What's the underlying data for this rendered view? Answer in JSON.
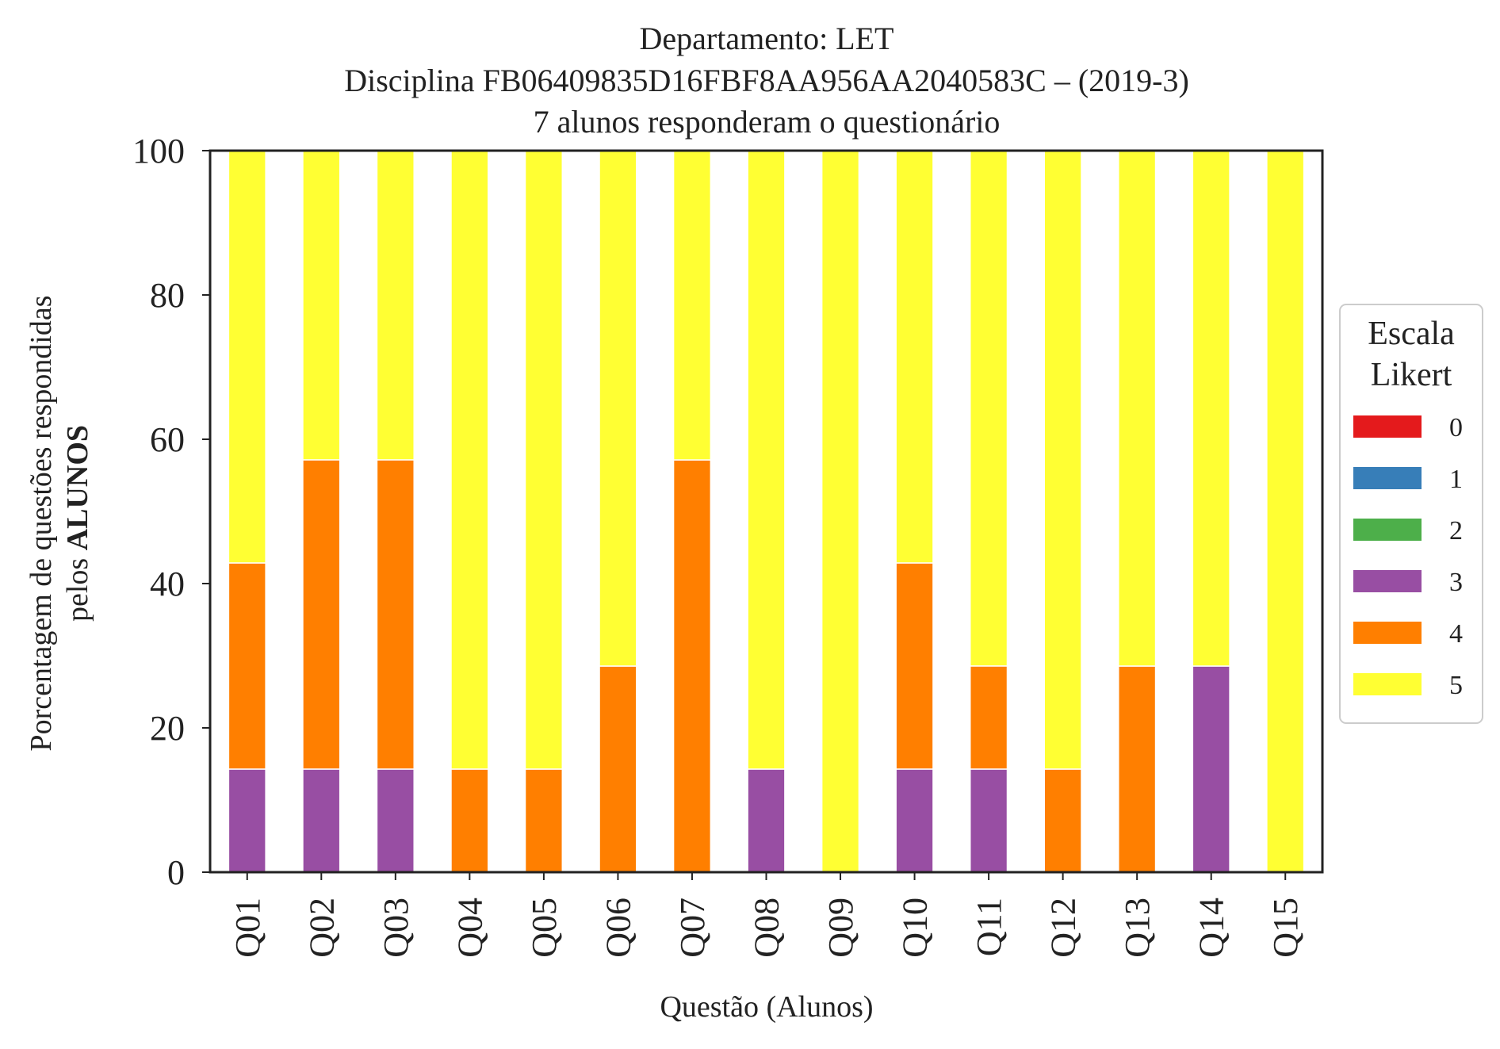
{
  "chart_data": {
    "type": "bar",
    "stacked": true,
    "title_lines": [
      "Departamento: LET",
      "Disciplina FB06409835D16FBF8AA956AA2040583C – (2019-3)",
      "7 alunos responderam o questionário"
    ],
    "xlabel": "Questão (Alunos)",
    "ylabel_line1": "Porcentagem de questões respondidas",
    "ylabel_line2_prefix": "pelos ",
    "ylabel_line2_bold": "ALUNOS",
    "ylim": [
      0,
      100
    ],
    "yticks": [
      "0",
      "20",
      "40",
      "60",
      "80",
      "100"
    ],
    "grid": false,
    "categories": [
      "Q01",
      "Q02",
      "Q03",
      "Q04",
      "Q05",
      "Q06",
      "Q07",
      "Q08",
      "Q09",
      "Q10",
      "Q11",
      "Q12",
      "Q13",
      "Q14",
      "Q15"
    ],
    "series": [
      {
        "name": "0",
        "color": "#e41a1c",
        "values": [
          0,
          0,
          0,
          0,
          0,
          0,
          0,
          0,
          0,
          0,
          0,
          0,
          0,
          0,
          0
        ]
      },
      {
        "name": "1",
        "color": "#377eb8",
        "values": [
          0,
          0,
          0,
          0,
          0,
          0,
          0,
          0,
          0,
          0,
          0,
          0,
          0,
          0,
          0
        ]
      },
      {
        "name": "2",
        "color": "#4daf4a",
        "values": [
          0,
          0,
          0,
          0,
          0,
          0,
          0,
          0,
          0,
          0,
          0,
          0,
          0,
          0,
          0
        ]
      },
      {
        "name": "3",
        "color": "#984ea3",
        "values": [
          14.29,
          14.29,
          14.29,
          0,
          0,
          0,
          0,
          14.29,
          0,
          14.29,
          14.29,
          0,
          0,
          28.57,
          0
        ]
      },
      {
        "name": "4",
        "color": "#ff7f00",
        "values": [
          28.57,
          42.86,
          42.86,
          14.29,
          14.29,
          28.57,
          57.14,
          0,
          0,
          28.57,
          14.29,
          14.29,
          28.57,
          0,
          0
        ]
      },
      {
        "name": "5",
        "color": "#ffff33",
        "values": [
          57.14,
          42.86,
          42.86,
          85.71,
          85.71,
          71.43,
          42.86,
          85.71,
          100,
          57.14,
          71.43,
          85.71,
          71.43,
          71.43,
          100
        ]
      }
    ],
    "legend": {
      "title_lines": [
        "Escala",
        "Likert"
      ],
      "placement": "right-center"
    }
  }
}
